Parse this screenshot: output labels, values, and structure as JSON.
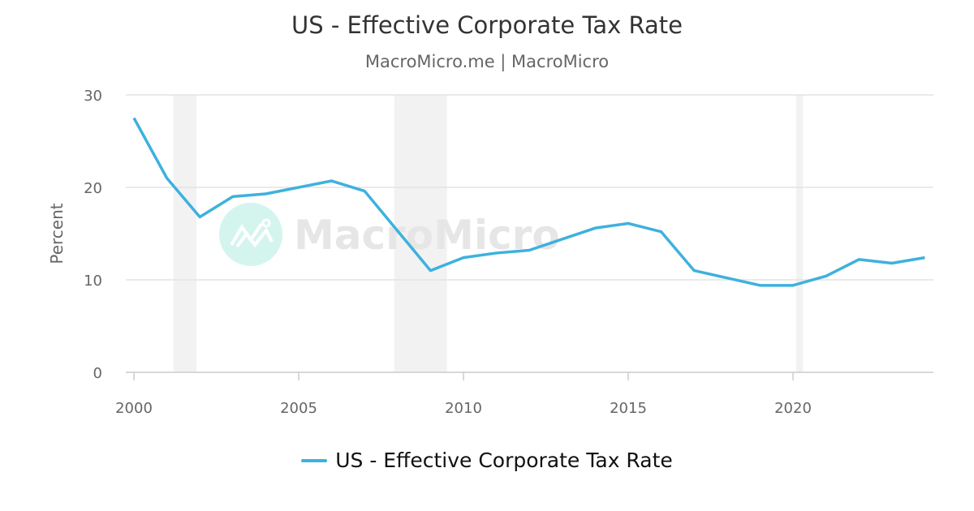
{
  "chart_data": {
    "type": "line",
    "title": "US - Effective Corporate Tax Rate",
    "subtitle": "MacroMicro.me | MacroMicro",
    "xlabel": "",
    "ylabel": "Percent",
    "x": [
      2000,
      2001,
      2002,
      2003,
      2004,
      2005,
      2006,
      2007,
      2008,
      2009,
      2010,
      2011,
      2012,
      2013,
      2014,
      2015,
      2016,
      2017,
      2018,
      2019,
      2020,
      2021,
      2022,
      2023,
      2024
    ],
    "series": [
      {
        "name": "US - Effective Corporate Tax Rate",
        "color": "#3eb1dd",
        "values": [
          27.5,
          21.0,
          16.8,
          19.0,
          19.3,
          20.0,
          20.7,
          19.6,
          15.3,
          11.0,
          12.4,
          12.9,
          13.2,
          14.4,
          15.6,
          16.1,
          15.2,
          11.0,
          10.2,
          9.4,
          9.4,
          10.4,
          12.2,
          11.8,
          12.4
        ]
      }
    ],
    "ylim": [
      0,
      30
    ],
    "yticks": [
      "0",
      "10",
      "20",
      "30"
    ],
    "xticks": [
      "2000",
      "2005",
      "2010",
      "2015",
      "2020"
    ],
    "shaded_periods": [
      [
        2001.2,
        2001.9
      ],
      [
        2007.9,
        2009.5
      ],
      [
        2020.1,
        2020.3
      ]
    ],
    "shade_color": "#f2f2f2",
    "grid": true,
    "legend_position": "bottom",
    "watermark": "MacroMicro"
  }
}
